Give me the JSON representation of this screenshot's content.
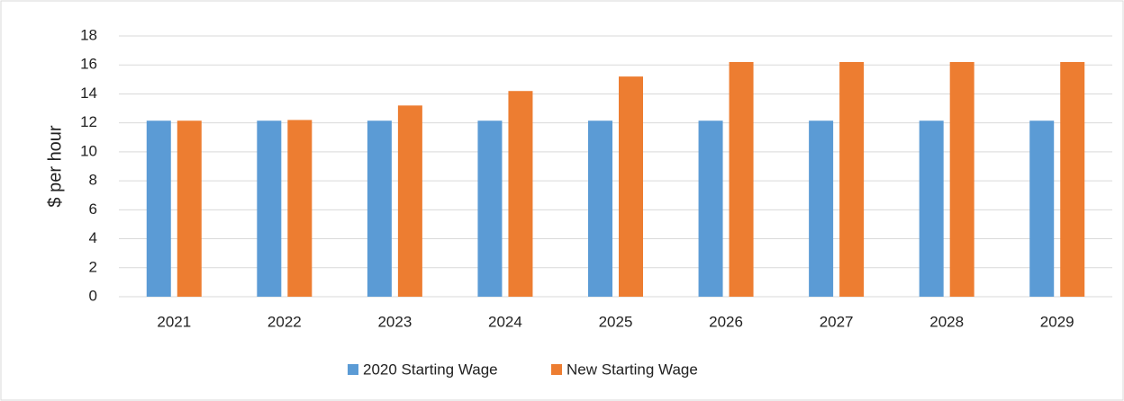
{
  "chart_data": {
    "type": "bar",
    "y_label": "$ per hour",
    "categories": [
      "2021",
      "2022",
      "2023",
      "2024",
      "2025",
      "2026",
      "2027",
      "2028",
      "2029"
    ],
    "series": [
      {
        "name": "2020 Starting Wage",
        "color": "#5b9bd5",
        "values": [
          12.15,
          12.15,
          12.15,
          12.15,
          12.15,
          12.15,
          12.15,
          12.15,
          12.15
        ]
      },
      {
        "name": "New Starting Wage",
        "color": "#ed7d31",
        "values": [
          12.15,
          12.2,
          13.2,
          14.2,
          15.2,
          16.2,
          16.2,
          16.2,
          16.2
        ]
      }
    ],
    "ylim": [
      0,
      18
    ],
    "yticks": [
      0,
      2,
      4,
      6,
      8,
      10,
      12,
      14,
      16,
      18
    ],
    "grid": true,
    "legend": "bottom"
  }
}
